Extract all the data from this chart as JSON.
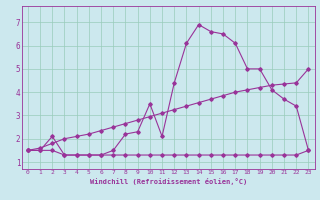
{
  "xlabel": "Windchill (Refroidissement éolien,°C)",
  "bg_color": "#cce8ee",
  "line_color": "#993399",
  "grid_color": "#99ccbb",
  "xlim": [
    -0.5,
    23.5
  ],
  "ylim": [
    0.7,
    7.7
  ],
  "xticks": [
    0,
    1,
    2,
    3,
    4,
    5,
    6,
    7,
    8,
    9,
    10,
    11,
    12,
    13,
    14,
    15,
    16,
    17,
    18,
    19,
    20,
    21,
    22,
    23
  ],
  "yticks": [
    1,
    2,
    3,
    4,
    5,
    6,
    7
  ],
  "line1_x": [
    0,
    1,
    2,
    3,
    4,
    5,
    6,
    7,
    8,
    9,
    10,
    11,
    12,
    13,
    14,
    15,
    16,
    17,
    18,
    19,
    20,
    21,
    22,
    23
  ],
  "line1_y": [
    1.5,
    1.5,
    2.1,
    1.3,
    1.3,
    1.3,
    1.3,
    1.5,
    2.2,
    2.3,
    3.5,
    2.1,
    4.4,
    6.1,
    6.9,
    6.6,
    6.5,
    6.1,
    5.0,
    5.0,
    4.1,
    3.7,
    3.4,
    1.5
  ],
  "line2_x": [
    0,
    1,
    2,
    3,
    4,
    5,
    6,
    7,
    8,
    9,
    10,
    11,
    12,
    13,
    14,
    15,
    16,
    17,
    18,
    19,
    20,
    21,
    22,
    23
  ],
  "line2_y": [
    1.5,
    1.5,
    1.5,
    1.3,
    1.3,
    1.3,
    1.3,
    1.3,
    1.3,
    1.3,
    1.3,
    1.3,
    1.3,
    1.3,
    1.3,
    1.3,
    1.3,
    1.3,
    1.3,
    1.3,
    1.3,
    1.3,
    1.3,
    1.5
  ],
  "line3_x": [
    0,
    1,
    2,
    3,
    4,
    5,
    6,
    7,
    8,
    9,
    10,
    11,
    12,
    13,
    14,
    15,
    16,
    17,
    18,
    19,
    20,
    21,
    22,
    23
  ],
  "line3_y": [
    1.5,
    1.6,
    1.8,
    2.0,
    2.1,
    2.2,
    2.35,
    2.5,
    2.65,
    2.8,
    2.95,
    3.1,
    3.25,
    3.4,
    3.55,
    3.7,
    3.85,
    4.0,
    4.1,
    4.2,
    4.3,
    4.35,
    4.4,
    5.0
  ]
}
